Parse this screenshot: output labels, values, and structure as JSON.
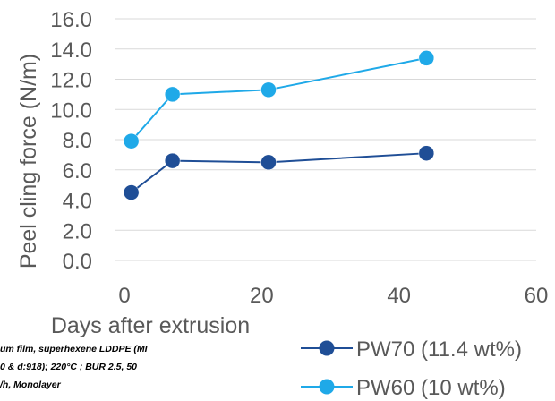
{
  "chart_data": {
    "type": "line",
    "title": "",
    "xlabel": "Days after extrusion",
    "ylabel": "Peel cling force (N/m)",
    "xlim": [
      0,
      60
    ],
    "ylim": [
      0,
      16
    ],
    "x_ticks": [
      "0",
      "20",
      "40",
      "60"
    ],
    "y_ticks": [
      "0.0",
      "2.0",
      "4.0",
      "6.0",
      "8.0",
      "10.0",
      "12.0",
      "14.0",
      "16.0"
    ],
    "grid": "horizontal",
    "legend_position": "bottom-right",
    "series": [
      {
        "name": "PW70 (11.4 wt%)",
        "color": "#1f4e96",
        "x": [
          1,
          7,
          21,
          44
        ],
        "y": [
          4.5,
          6.6,
          6.5,
          7.1
        ]
      },
      {
        "name": "PW60 (10 wt%)",
        "color": "#1fa9e8",
        "x": [
          1,
          7,
          21,
          44
        ],
        "y": [
          7.9,
          11.0,
          11.3,
          13.4
        ]
      }
    ]
  },
  "note": {
    "line1": "um film, superhexene LDDPE (MI",
    "line2": "0 & d:918); 220°C ; BUR 2.5, 50",
    "line3": "/h, Monolayer"
  }
}
